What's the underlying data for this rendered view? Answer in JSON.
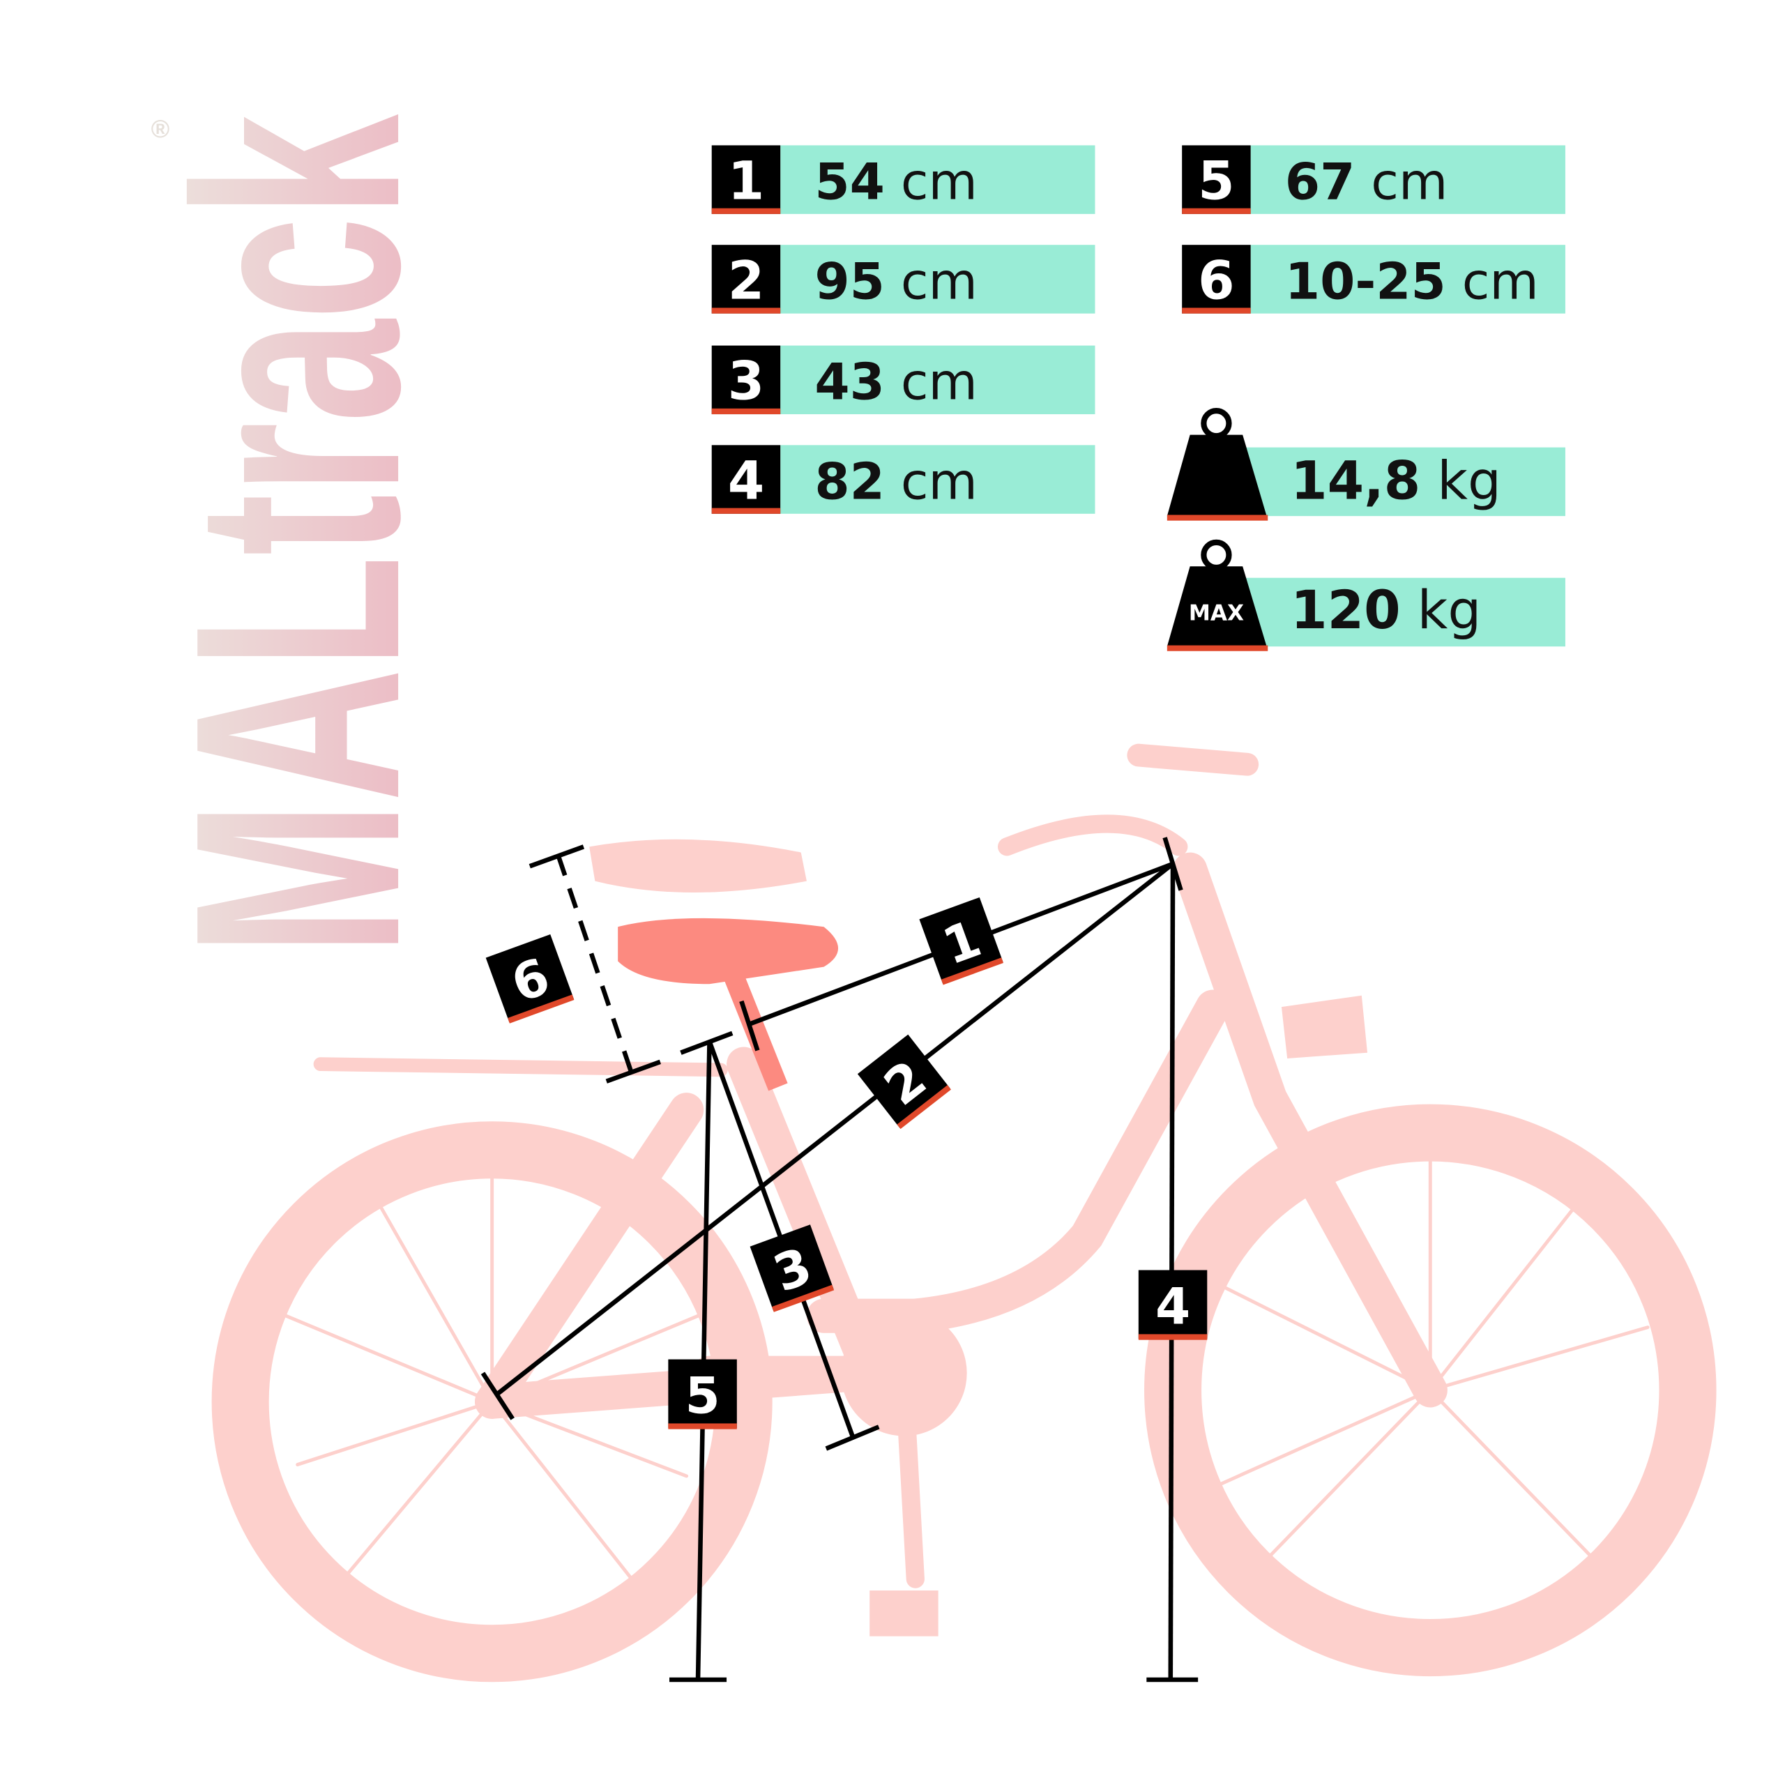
{
  "brand": {
    "name": "MALtrack",
    "registered": "®"
  },
  "colors": {
    "accent_bar": "#99ecd6",
    "badge": "#000000",
    "underline": "#e0482a",
    "bike": "#fdd0cc",
    "saddle": "#fc8a80",
    "brand_top": "#ece6e0",
    "brand_bottom": "#ecb4c0"
  },
  "measurements": [
    {
      "id": "1",
      "value": "54",
      "unit": "cm"
    },
    {
      "id": "2",
      "value": "95",
      "unit": "cm"
    },
    {
      "id": "3",
      "value": "43",
      "unit": "cm"
    },
    {
      "id": "4",
      "value": "82",
      "unit": "cm"
    },
    {
      "id": "5",
      "value": "67",
      "unit": "cm"
    },
    {
      "id": "6",
      "value": "10-25",
      "unit": "cm"
    }
  ],
  "weight": {
    "icon": "weight-icon",
    "value": "14,8",
    "unit": "kg"
  },
  "max_load": {
    "icon": "weight-max-icon",
    "icon_label": "MAX",
    "value": "120",
    "unit": "kg"
  }
}
